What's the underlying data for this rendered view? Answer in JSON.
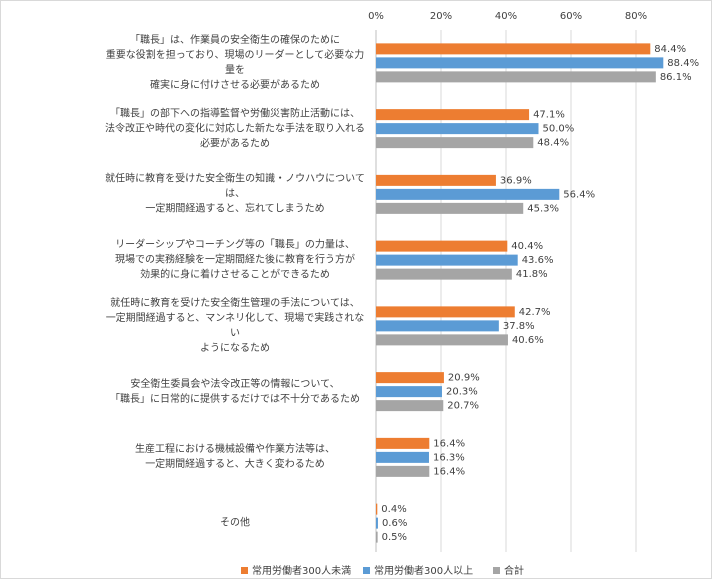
{
  "chart_data": {
    "type": "bar",
    "orientation": "horizontal",
    "categories": [
      "「職長」は、作業員の安全衛生の確保のために\n重要な役割を担っており、現場のリーダーとして必要な力量を\n確実に身に付けさせる必要があるため",
      "「職長」の部下への指導監督や労働災害防止活動には、\n法令改正や時代の変化に対応した新たな手法を取り入れる\n必要があるため",
      "就任時に教育を受けた安全衛生の知識・ノウハウについては、\n一定期間経過すると、忘れてしまうため",
      "リーダーシップやコーチング等の「職長」の力量は、\n現場での実務経験を一定期間経た後に教育を行う方が\n効果的に身に着けさせることができるため",
      "就任時に教育を受けた安全衛生管理の手法については、\n一定期間経過すると、マンネリ化して、現場で実践されない\nようになるため",
      "安全衛生委員会や法令改正等の情報について、\n「職長」に日常的に提供するだけでは不十分であるため",
      "生産工程における機械設備や作業方法等は、\n一定期間経過すると、大きく変わるため",
      "その他"
    ],
    "series": [
      {
        "name": "常用労働者300人未満",
        "color": "#ED7D31",
        "values": [
          84.4,
          47.1,
          36.9,
          40.4,
          42.7,
          20.9,
          16.4,
          0.4
        ],
        "value_labels": [
          "84.4%",
          "47.1%",
          "36.9%",
          "40.4%",
          "42.7%",
          "20.9%",
          "16.4%",
          "0.4%"
        ]
      },
      {
        "name": "常用労働者300人以上",
        "color": "#5B9BD5",
        "values": [
          88.4,
          50,
          56.4,
          43.6,
          37.8,
          20.3,
          16.3,
          0.6
        ],
        "value_labels": [
          "88.4%",
          "50.0%",
          "56.4%",
          "43.6%",
          "37.8%",
          "20.3%",
          "16.3%",
          "0.6%"
        ]
      },
      {
        "name": "合計",
        "color": "#A5A5A5",
        "values": [
          86.1,
          48.4,
          45.3,
          41.8,
          40.6,
          20.7,
          16.4,
          0.5
        ],
        "value_labels": [
          "86.1%",
          "48.4%",
          "45.3%",
          "41.8%",
          "40.6%",
          "20.7%",
          "16.4%",
          "0.5%"
        ]
      }
    ],
    "xlim": [
      0,
      90
    ],
    "xticks": [
      {
        "value": 0,
        "label": "0%"
      },
      {
        "value": 20,
        "label": "20%"
      },
      {
        "value": 40,
        "label": "40%"
      },
      {
        "value": 60,
        "label": "60%"
      },
      {
        "value": 80,
        "label": "80%"
      }
    ],
    "grid": true,
    "legend": "bottom"
  }
}
